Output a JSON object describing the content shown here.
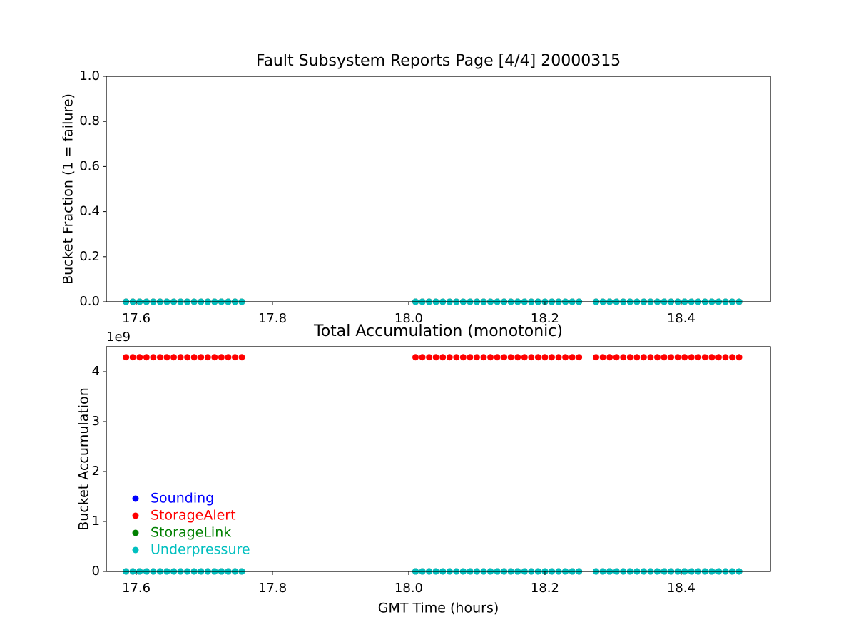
{
  "chart_data": [
    {
      "type": "scatter",
      "title": "Fault Subsystem Reports Page [4/4] 20000315",
      "ylabel": "Bucket Fraction (1 = failure)",
      "x": [
        17.585,
        17.595,
        17.605,
        17.615,
        17.625,
        17.635,
        17.645,
        17.655,
        17.665,
        17.675,
        17.685,
        17.695,
        17.705,
        17.715,
        17.725,
        17.735,
        17.745,
        17.755,
        18.01,
        18.02,
        18.03,
        18.04,
        18.05,
        18.06,
        18.07,
        18.08,
        18.09,
        18.1,
        18.11,
        18.12,
        18.13,
        18.14,
        18.15,
        18.16,
        18.17,
        18.18,
        18.19,
        18.2,
        18.21,
        18.22,
        18.23,
        18.24,
        18.25,
        18.275,
        18.285,
        18.295,
        18.305,
        18.315,
        18.325,
        18.335,
        18.345,
        18.355,
        18.365,
        18.375,
        18.385,
        18.395,
        18.405,
        18.415,
        18.425,
        18.435,
        18.445,
        18.455,
        18.465,
        18.475,
        18.485
      ],
      "series": [
        {
          "name": "Sounding",
          "color": "#0000ff",
          "values": [
            0,
            0,
            0,
            0,
            0,
            0,
            0,
            0,
            0,
            0,
            0,
            0,
            0,
            0,
            0,
            0,
            0,
            0,
            0,
            0,
            0,
            0,
            0,
            0,
            0,
            0,
            0,
            0,
            0,
            0,
            0,
            0,
            0,
            0,
            0,
            0,
            0,
            0,
            0,
            0,
            0,
            0,
            0,
            0,
            0,
            0,
            0,
            0,
            0,
            0,
            0,
            0,
            0,
            0,
            0,
            0,
            0,
            0,
            0,
            0,
            0,
            0,
            0,
            0,
            0
          ]
        },
        {
          "name": "StorageAlert",
          "color": "#ff0000",
          "values": [
            0,
            0,
            0,
            0,
            0,
            0,
            0,
            0,
            0,
            0,
            0,
            0,
            0,
            0,
            0,
            0,
            0,
            0,
            0,
            0,
            0,
            0,
            0,
            0,
            0,
            0,
            0,
            0,
            0,
            0,
            0,
            0,
            0,
            0,
            0,
            0,
            0,
            0,
            0,
            0,
            0,
            0,
            0,
            0,
            0,
            0,
            0,
            0,
            0,
            0,
            0,
            0,
            0,
            0,
            0,
            0,
            0,
            0,
            0,
            0,
            0,
            0,
            0,
            0,
            0
          ]
        },
        {
          "name": "StorageLink",
          "color": "#008000",
          "values": [
            0,
            0,
            0,
            0,
            0,
            0,
            0,
            0,
            0,
            0,
            0,
            0,
            0,
            0,
            0,
            0,
            0,
            0,
            0,
            0,
            0,
            0,
            0,
            0,
            0,
            0,
            0,
            0,
            0,
            0,
            0,
            0,
            0,
            0,
            0,
            0,
            0,
            0,
            0,
            0,
            0,
            0,
            0,
            0,
            0,
            0,
            0,
            0,
            0,
            0,
            0,
            0,
            0,
            0,
            0,
            0,
            0,
            0,
            0,
            0,
            0,
            0,
            0,
            0,
            0
          ]
        },
        {
          "name": "Underpressure",
          "color": "#00bfbf",
          "values": [
            0,
            0,
            0,
            0,
            0,
            0,
            0,
            0,
            0,
            0,
            0,
            0,
            0,
            0,
            0,
            0,
            0,
            0,
            0,
            0,
            0,
            0,
            0,
            0,
            0,
            0,
            0,
            0,
            0,
            0,
            0,
            0,
            0,
            0,
            0,
            0,
            0,
            0,
            0,
            0,
            0,
            0,
            0,
            0,
            0,
            0,
            0,
            0,
            0,
            0,
            0,
            0,
            0,
            0,
            0,
            0,
            0,
            0,
            0,
            0,
            0,
            0,
            0,
            0,
            0
          ]
        }
      ],
      "xlim": [
        17.556,
        18.531
      ],
      "xticks": [
        17.6,
        17.8,
        {
          "value": 18,
          "label": "18.0"
        },
        18.2,
        18.4
      ],
      "ylim": [
        0,
        1
      ],
      "yticks": [
        {
          "value": 0,
          "label": "0.0"
        },
        {
          "value": 0.2,
          "label": "0.2"
        },
        {
          "value": 0.4,
          "label": "0.4"
        },
        {
          "value": 0.6,
          "label": "0.6"
        },
        {
          "value": 0.8,
          "label": "0.8"
        },
        {
          "value": 1,
          "label": "1.0"
        }
      ],
      "legend": false
    },
    {
      "type": "scatter",
      "title": "Total Accumulation (monotonic)",
      "xlabel": "GMT Time (hours)",
      "ylabel": "Bucket Accumulation",
      "y_offset_label": "1e9",
      "x": [
        17.585,
        17.595,
        17.605,
        17.615,
        17.625,
        17.635,
        17.645,
        17.655,
        17.665,
        17.675,
        17.685,
        17.695,
        17.705,
        17.715,
        17.725,
        17.735,
        17.745,
        17.755,
        18.01,
        18.02,
        18.03,
        18.04,
        18.05,
        18.06,
        18.07,
        18.08,
        18.09,
        18.1,
        18.11,
        18.12,
        18.13,
        18.14,
        18.15,
        18.16,
        18.17,
        18.18,
        18.19,
        18.2,
        18.21,
        18.22,
        18.23,
        18.24,
        18.25,
        18.275,
        18.285,
        18.295,
        18.305,
        18.315,
        18.325,
        18.335,
        18.345,
        18.355,
        18.365,
        18.375,
        18.385,
        18.395,
        18.405,
        18.415,
        18.425,
        18.435,
        18.445,
        18.455,
        18.465,
        18.475,
        18.485
      ],
      "series": [
        {
          "name": "Sounding",
          "color": "#0000ff",
          "values": [
            0,
            0,
            0,
            0,
            0,
            0,
            0,
            0,
            0,
            0,
            0,
            0,
            0,
            0,
            0,
            0,
            0,
            0,
            0,
            0,
            0,
            0,
            0,
            0,
            0,
            0,
            0,
            0,
            0,
            0,
            0,
            0,
            0,
            0,
            0,
            0,
            0,
            0,
            0,
            0,
            0,
            0,
            0,
            0,
            0,
            0,
            0,
            0,
            0,
            0,
            0,
            0,
            0,
            0,
            0,
            0,
            0,
            0,
            0,
            0,
            0,
            0,
            0,
            0,
            0
          ]
        },
        {
          "name": "StorageAlert",
          "color": "#ff0000",
          "values": [
            4290000000,
            4290000000,
            4290000000,
            4290000000,
            4290000000,
            4290000000,
            4290000000,
            4290000000,
            4290000000,
            4290000000,
            4290000000,
            4290000000,
            4290000000,
            4290000000,
            4290000000,
            4290000000,
            4290000000,
            4290000000,
            4290000000,
            4290000000,
            4290000000,
            4290000000,
            4290000000,
            4290000000,
            4290000000,
            4290000000,
            4290000000,
            4290000000,
            4290000000,
            4290000000,
            4290000000,
            4290000000,
            4290000000,
            4290000000,
            4290000000,
            4290000000,
            4290000000,
            4290000000,
            4290000000,
            4290000000,
            4290000000,
            4290000000,
            4290000000,
            4290000000,
            4290000000,
            4290000000,
            4290000000,
            4290000000,
            4290000000,
            4290000000,
            4290000000,
            4290000000,
            4290000000,
            4290000000,
            4290000000,
            4290000000,
            4290000000,
            4290000000,
            4290000000,
            4290000000,
            4290000000,
            4290000000,
            4290000000,
            4290000000,
            4290000000
          ]
        },
        {
          "name": "StorageLink",
          "color": "#008000",
          "values": [
            0,
            0,
            0,
            0,
            0,
            0,
            0,
            0,
            0,
            0,
            0,
            0,
            0,
            0,
            0,
            0,
            0,
            0,
            0,
            0,
            0,
            0,
            0,
            0,
            0,
            0,
            0,
            0,
            0,
            0,
            0,
            0,
            0,
            0,
            0,
            0,
            0,
            0,
            0,
            0,
            0,
            0,
            0,
            0,
            0,
            0,
            0,
            0,
            0,
            0,
            0,
            0,
            0,
            0,
            0,
            0,
            0,
            0,
            0,
            0,
            0,
            0,
            0,
            0,
            0
          ]
        },
        {
          "name": "Underpressure",
          "color": "#00bfbf",
          "values": [
            0,
            0,
            0,
            0,
            0,
            0,
            0,
            0,
            0,
            0,
            0,
            0,
            0,
            0,
            0,
            0,
            0,
            0,
            0,
            0,
            0,
            0,
            0,
            0,
            0,
            0,
            0,
            0,
            0,
            0,
            0,
            0,
            0,
            0,
            0,
            0,
            0,
            0,
            0,
            0,
            0,
            0,
            0,
            0,
            0,
            0,
            0,
            0,
            0,
            0,
            0,
            0,
            0,
            0,
            0,
            0,
            0,
            0,
            0,
            0,
            0,
            0,
            0,
            0,
            0
          ]
        }
      ],
      "xlim": [
        17.556,
        18.531
      ],
      "xticks": [
        17.6,
        17.8,
        {
          "value": 18,
          "label": "18.0"
        },
        18.2,
        18.4
      ],
      "ylim": [
        0,
        4500000000
      ],
      "yticks": [
        {
          "value": 0,
          "label": "0"
        },
        {
          "value": 1000000000,
          "label": "1"
        },
        {
          "value": 2000000000,
          "label": "2"
        },
        {
          "value": 3000000000,
          "label": "3"
        },
        {
          "value": 4000000000,
          "label": "4"
        }
      ],
      "legend": true,
      "legend_loc": "lower left"
    }
  ]
}
